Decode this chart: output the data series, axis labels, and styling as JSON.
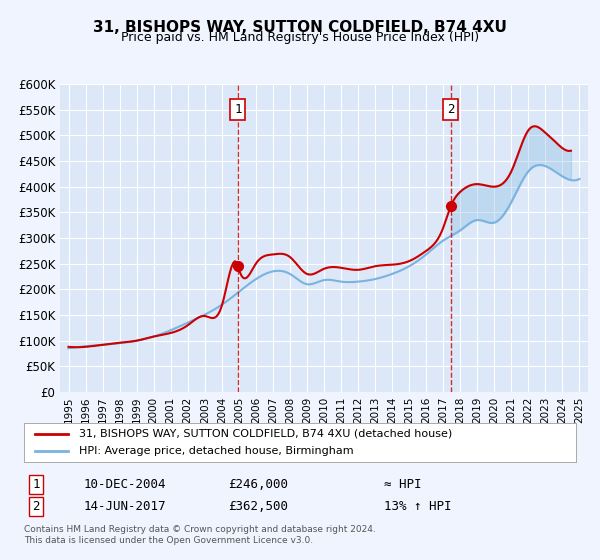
{
  "title": "31, BISHOPS WAY, SUTTON COLDFIELD, B74 4XU",
  "subtitle": "Price paid vs. HM Land Registry's House Price Index (HPI)",
  "bg_color": "#f0f4ff",
  "plot_bg_color": "#dce8f8",
  "grid_color": "#ffffff",
  "hpi_color": "#7ab3e0",
  "price_color": "#cc0000",
  "marker_color": "#cc0000",
  "ylim": [
    0,
    600000
  ],
  "yticks": [
    0,
    50000,
    100000,
    150000,
    200000,
    250000,
    300000,
    350000,
    400000,
    450000,
    500000,
    550000,
    600000
  ],
  "ytick_labels": [
    "£0",
    "£50K",
    "£100K",
    "£150K",
    "£200K",
    "£250K",
    "£300K",
    "£350K",
    "£400K",
    "£450K",
    "£500K",
    "£550K",
    "£600K"
  ],
  "xlim_start": 1994.5,
  "xlim_end": 2025.5,
  "xticks": [
    1995,
    1996,
    1997,
    1998,
    1999,
    2000,
    2001,
    2002,
    2003,
    2004,
    2005,
    2006,
    2007,
    2008,
    2009,
    2010,
    2011,
    2012,
    2013,
    2014,
    2015,
    2016,
    2017,
    2018,
    2019,
    2020,
    2021,
    2022,
    2023,
    2024,
    2025
  ],
  "marker1_x": 2004.95,
  "marker1_y": 246000,
  "marker2_x": 2017.45,
  "marker2_y": 362500,
  "vline1_x": 2004.95,
  "vline2_x": 2017.45,
  "legend_label1": "31, BISHOPS WAY, SUTTON COLDFIELD, B74 4XU (detached house)",
  "legend_label2": "HPI: Average price, detached house, Birmingham",
  "annotation1_label": "1",
  "annotation2_label": "2",
  "table_row1": [
    "1",
    "10-DEC-2004",
    "£246,000",
    "≈ HPI"
  ],
  "table_row2": [
    "2",
    "14-JUN-2017",
    "£362,500",
    "13% ↑ HPI"
  ],
  "footer1": "Contains HM Land Registry data © Crown copyright and database right 2024.",
  "footer2": "This data is licensed under the Open Government Licence v3.0."
}
